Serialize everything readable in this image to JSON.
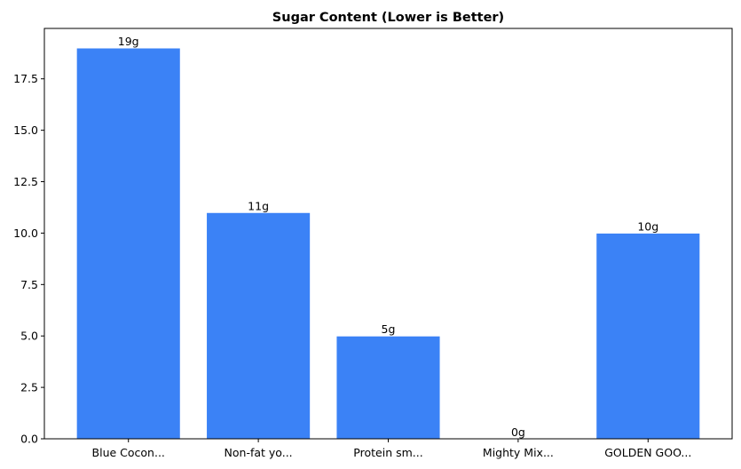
{
  "chart_data": {
    "type": "bar",
    "title": "Sugar Content (Lower is Better)",
    "xlabel": "",
    "ylabel": "",
    "categories": [
      "Blue Cocon...",
      "Non-fat yo...",
      "Protein sm...",
      "Mighty Mix...",
      "GOLDEN GOO..."
    ],
    "values": [
      19,
      11,
      5,
      0,
      10
    ],
    "data_labels": [
      "19g",
      "11g",
      "5g",
      "0g",
      "10g"
    ],
    "ylim": [
      0,
      19.95
    ],
    "yticks": [
      0,
      2.5,
      5,
      7.5,
      10,
      12.5,
      15,
      17.5
    ],
    "ytick_labels": [
      "0.0",
      "2.5",
      "5.0",
      "7.5",
      "10.0",
      "12.5",
      "15.0",
      "17.5"
    ],
    "grid": false,
    "bar_color": "#3b82f6",
    "edge_color": "#ffffff"
  }
}
